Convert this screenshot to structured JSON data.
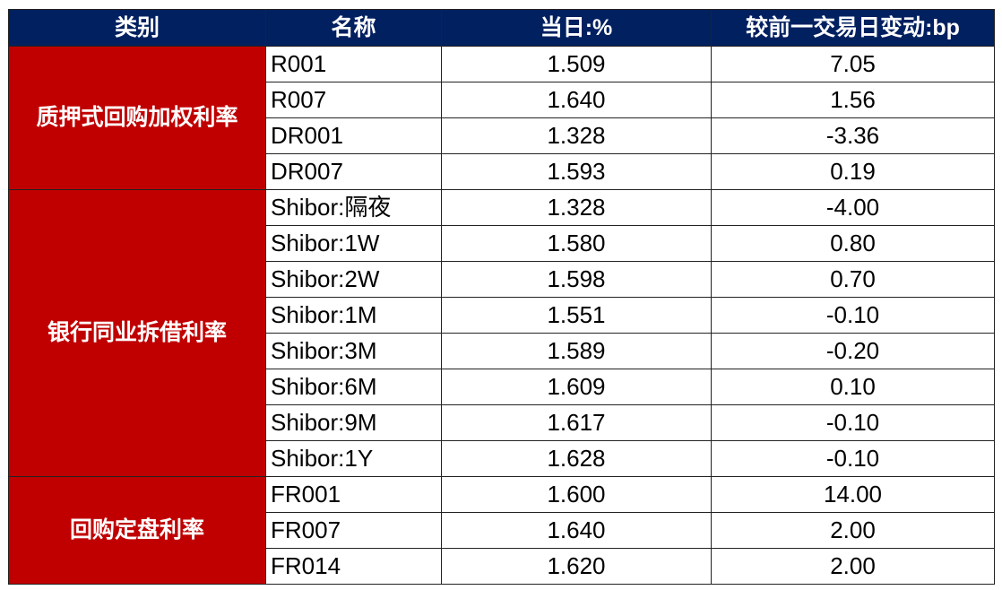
{
  "table": {
    "header": [
      "类别",
      "名称",
      "当日:%",
      "较前一交易日变动:bp"
    ],
    "groups": [
      {
        "category": "质押式回购加权利率",
        "rows": [
          [
            "R001",
            "1.509",
            "7.05"
          ],
          [
            "R007",
            "1.640",
            "1.56"
          ],
          [
            "DR001",
            "1.328",
            "-3.36"
          ],
          [
            "DR007",
            "1.593",
            "0.19"
          ]
        ]
      },
      {
        "category": "银行同业拆借利率",
        "rows": [
          [
            "Shibor:隔夜",
            "1.328",
            "-4.00"
          ],
          [
            "Shibor:1W",
            "1.580",
            "0.80"
          ],
          [
            "Shibor:2W",
            "1.598",
            "0.70"
          ],
          [
            "Shibor:1M",
            "1.551",
            "-0.10"
          ],
          [
            "Shibor:3M",
            "1.589",
            "-0.20"
          ],
          [
            "Shibor:6M",
            "1.609",
            "0.10"
          ],
          [
            "Shibor:9M",
            "1.617",
            "-0.10"
          ],
          [
            "Shibor:1Y",
            "1.628",
            "-0.10"
          ]
        ]
      },
      {
        "category": "回购定盘利率",
        "rows": [
          [
            "FR001",
            "1.600",
            "14.00"
          ],
          [
            "FR007",
            "1.640",
            "2.00"
          ],
          [
            "FR014",
            "1.620",
            "2.00"
          ]
        ]
      }
    ]
  }
}
